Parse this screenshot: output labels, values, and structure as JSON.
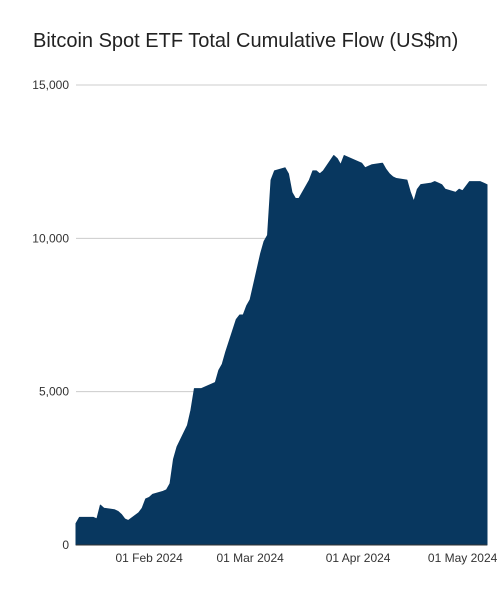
{
  "chart_data": {
    "type": "area",
    "title": "Bitcoin Spot ETF Total Cumulative Flow (US$m)",
    "xlabel": "",
    "ylabel": "",
    "ylim": [
      0,
      15000
    ],
    "y_ticks": [
      {
        "value": 0,
        "label": "0"
      },
      {
        "value": 5000,
        "label": "5,000"
      },
      {
        "value": 10000,
        "label": "10,000"
      },
      {
        "value": 15000,
        "label": "15,000"
      }
    ],
    "x_range": [
      "2024-01-11",
      "2024-05-08"
    ],
    "x_ticks": [
      {
        "date": "2024-02-01",
        "label": "01 Feb 2024"
      },
      {
        "date": "2024-03-01",
        "label": "01 Mar 2024"
      },
      {
        "date": "2024-04-01",
        "label": "01 Apr 2024"
      },
      {
        "date": "2024-05-01",
        "label": "01 May 2024"
      }
    ],
    "grid": true,
    "color": "#08375f",
    "series": [
      {
        "x": [
          "2024-01-11",
          "2024-01-12",
          "2024-01-16",
          "2024-01-17",
          "2024-01-18",
          "2024-01-19",
          "2024-01-22",
          "2024-01-23",
          "2024-01-24",
          "2024-01-25",
          "2024-01-26",
          "2024-01-29",
          "2024-01-30",
          "2024-01-31",
          "2024-02-01",
          "2024-02-02",
          "2024-02-05",
          "2024-02-06",
          "2024-02-07",
          "2024-02-08",
          "2024-02-09",
          "2024-02-12",
          "2024-02-13",
          "2024-02-14",
          "2024-02-15",
          "2024-02-16",
          "2024-02-20",
          "2024-02-21",
          "2024-02-22",
          "2024-02-23",
          "2024-02-26",
          "2024-02-27",
          "2024-02-28",
          "2024-02-29",
          "2024-03-01",
          "2024-03-04",
          "2024-03-05",
          "2024-03-06",
          "2024-03-07",
          "2024-03-08",
          "2024-03-11",
          "2024-03-12",
          "2024-03-13",
          "2024-03-14",
          "2024-03-15",
          "2024-03-18",
          "2024-03-19",
          "2024-03-20",
          "2024-03-21",
          "2024-03-22",
          "2024-03-25",
          "2024-03-26",
          "2024-03-27",
          "2024-03-28",
          "2024-04-01",
          "2024-04-02",
          "2024-04-03",
          "2024-04-04",
          "2024-04-05",
          "2024-04-08",
          "2024-04-09",
          "2024-04-10",
          "2024-04-11",
          "2024-04-12",
          "2024-04-15",
          "2024-04-16",
          "2024-04-17",
          "2024-04-18",
          "2024-04-19",
          "2024-04-22",
          "2024-04-23",
          "2024-04-24",
          "2024-04-25",
          "2024-04-26",
          "2024-04-29",
          "2024-04-30",
          "2024-05-01",
          "2024-05-02",
          "2024-05-03",
          "2024-05-06",
          "2024-05-07",
          "2024-05-08"
        ],
        "values": [
          700,
          900,
          900,
          850,
          1300,
          1200,
          1150,
          1100,
          1000,
          850,
          800,
          1050,
          1200,
          1500,
          1550,
          1650,
          1750,
          1800,
          2000,
          2800,
          3200,
          3900,
          4400,
          5100,
          5100,
          5100,
          5300,
          5700,
          5900,
          6300,
          7350,
          7500,
          7500,
          7800,
          8000,
          9500,
          9900,
          10100,
          11900,
          12200,
          12300,
          12100,
          11500,
          11300,
          11300,
          11900,
          12200,
          12200,
          12100,
          12200,
          12700,
          12600,
          12400,
          12700,
          12500,
          12450,
          12300,
          12350,
          12400,
          12450,
          12250,
          12100,
          12000,
          11950,
          11900,
          11500,
          11200,
          11600,
          11750,
          11800,
          11850,
          11800,
          11750,
          11600,
          11500,
          11600,
          11550,
          11700,
          11850,
          11850,
          11800,
          11750
        ]
      }
    ]
  }
}
